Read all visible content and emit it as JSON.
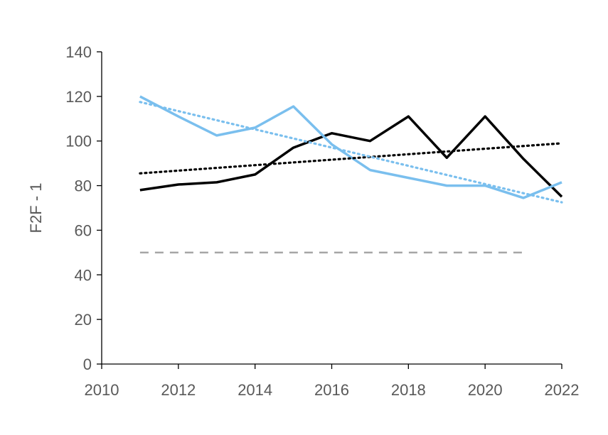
{
  "chart_data": {
    "type": "line",
    "title": "",
    "xlabel": "",
    "ylabel": "F2F - 1",
    "xlim": [
      2010,
      2022
    ],
    "ylim": [
      0,
      140
    ],
    "x_ticks": [
      2010,
      2012,
      2014,
      2016,
      2018,
      2020,
      2022
    ],
    "y_ticks": [
      0,
      20,
      40,
      60,
      80,
      100,
      120,
      140
    ],
    "grid": false,
    "legend": "none",
    "series": [
      {
        "color": "#000000",
        "style": "solid",
        "x": [
          2011,
          2012,
          2013,
          2014,
          2015,
          2016,
          2017,
          2018,
          2019,
          2020,
          2021,
          2022
        ],
        "y": [
          78,
          80.5,
          81.5,
          85,
          97,
          103.5,
          100,
          111,
          92.5,
          111,
          92,
          75
        ]
      },
      {
        "color": "#7abfee",
        "style": "solid",
        "x": [
          2011,
          2012,
          2013,
          2014,
          2015,
          2016,
          2017,
          2018,
          2019,
          2020,
          2021,
          2022
        ],
        "y": [
          120,
          111,
          102.5,
          106,
          115.5,
          98.5,
          87,
          83.5,
          80,
          80,
          74.5,
          81.5
        ]
      },
      {
        "color": "#000000",
        "style": "dotted",
        "x": [
          2011,
          2022
        ],
        "y": [
          85.5,
          99
        ]
      },
      {
        "color": "#7abfee",
        "style": "dotted",
        "x": [
          2011,
          2022
        ],
        "y": [
          117.5,
          72.5
        ]
      },
      {
        "color": "#a6a6a6",
        "style": "dashed",
        "x": [
          2011,
          2021
        ],
        "y": [
          50,
          50
        ]
      }
    ]
  }
}
